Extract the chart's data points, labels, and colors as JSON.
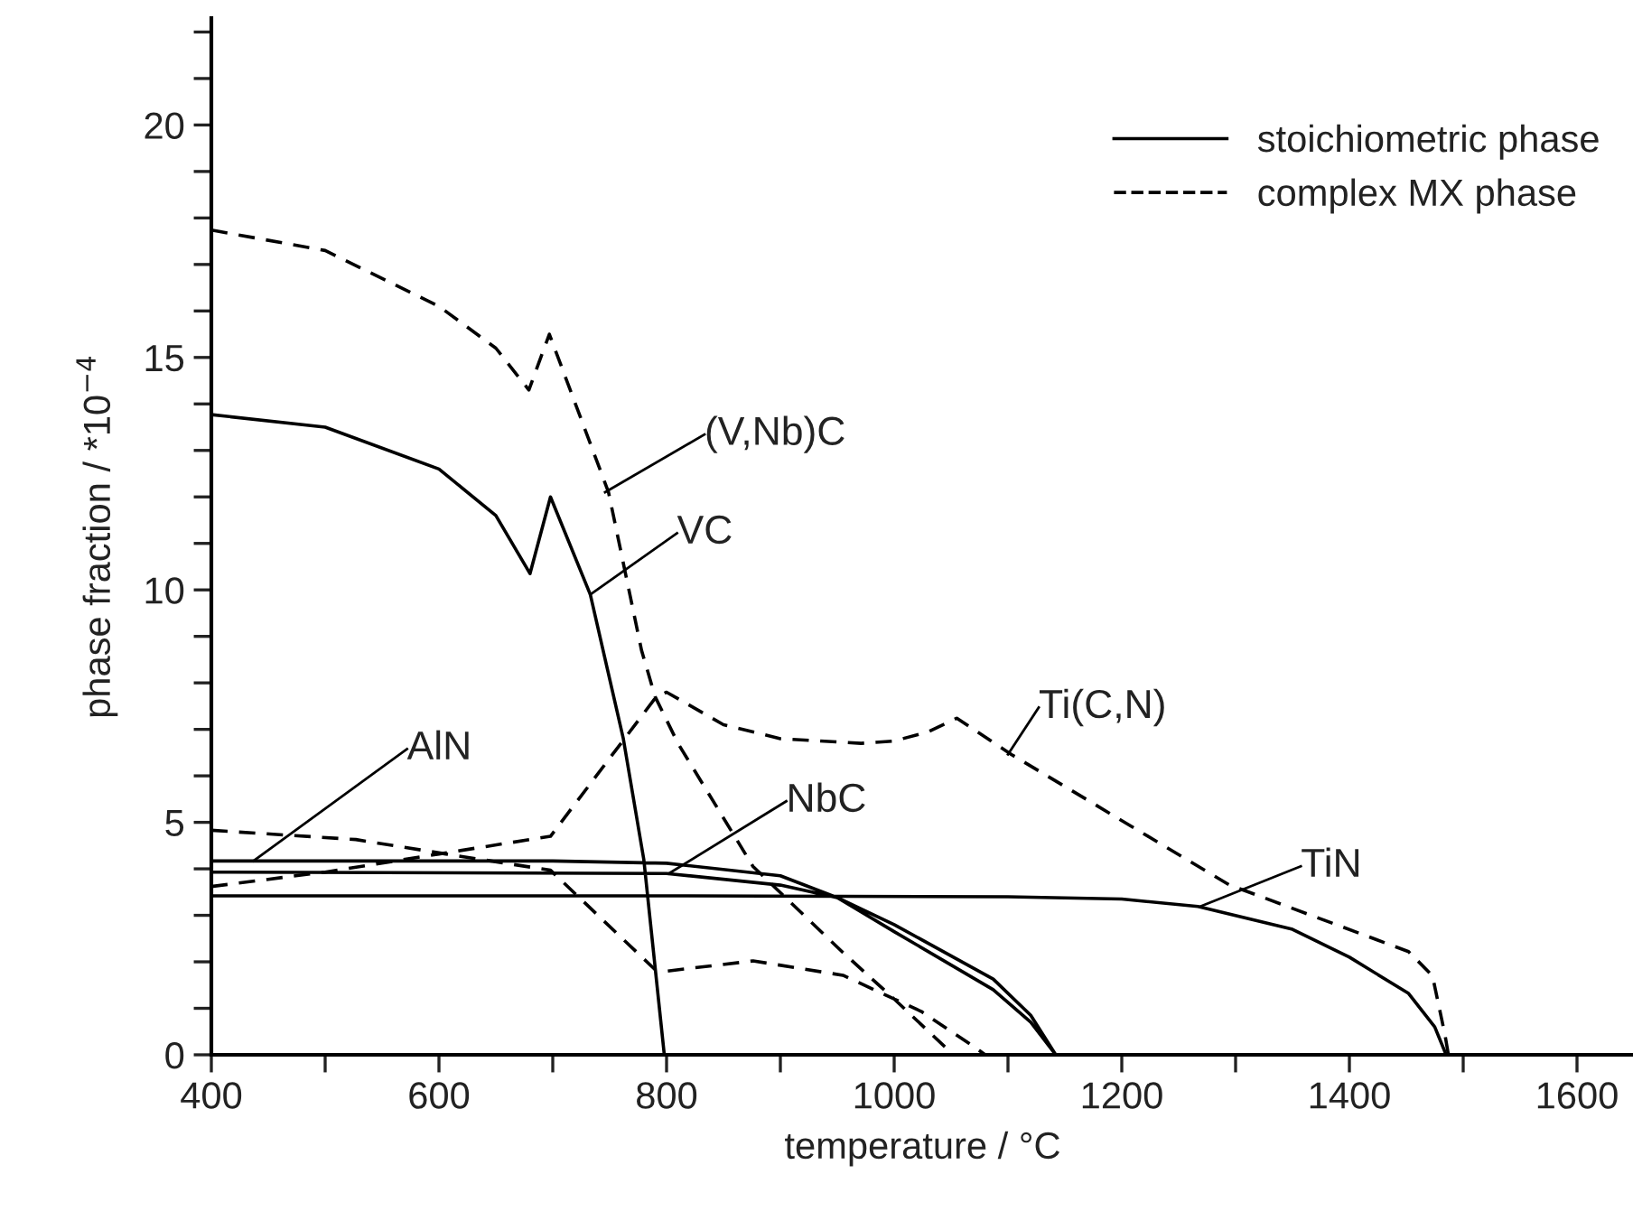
{
  "chart_data": {
    "type": "line",
    "xlabel": "temperature / °C",
    "ylabel": "phase fraction / *10$^{−4}$",
    "xlim": [
      400,
      1650
    ],
    "ylim": [
      0,
      22.3
    ],
    "xticks": [
      400,
      {
        "value": 500,
        "label": null
      },
      600,
      {
        "value": 700,
        "label": null
      },
      800,
      {
        "value": 900,
        "label": null
      },
      1000,
      {
        "value": 1100,
        "label": null
      },
      1200,
      {
        "value": 1300,
        "label": null
      },
      1400,
      {
        "value": 1500,
        "label": null
      },
      1600
    ],
    "yticks": [
      0,
      {
        "value": 1,
        "label": null
      },
      {
        "value": 2,
        "label": null
      },
      {
        "value": 3,
        "label": null
      },
      {
        "value": 4,
        "label": null
      },
      5,
      {
        "value": 6,
        "label": null
      },
      {
        "value": 7,
        "label": null
      },
      {
        "value": 8,
        "label": null
      },
      {
        "value": 9,
        "label": null
      },
      10,
      {
        "value": 11,
        "label": null
      },
      {
        "value": 12,
        "label": null
      },
      {
        "value": 13,
        "label": null
      },
      {
        "value": 14,
        "label": null
      },
      15,
      {
        "value": 16,
        "label": null
      },
      {
        "value": 17,
        "label": null
      },
      {
        "value": 18,
        "label": null
      },
      {
        "value": 19,
        "label": null
      },
      20,
      {
        "value": 21,
        "label": null
      },
      {
        "value": 22,
        "label": null
      }
    ],
    "grid": false,
    "legend": "top right",
    "marker": "none",
    "series": [
      {
        "name": "stoichiometric phase",
        "color": "#000000",
        "line_style": "solid",
        "x": [
          400,
          500,
          600,
          650,
          680,
          698,
          733,
          762,
          780,
          798,
          null,
          400,
          800,
          1100,
          1200,
          1267,
          1350,
          1400,
          1452,
          1475,
          1485,
          null,
          400,
          700,
          800,
          900,
          950,
          1000,
          1087,
          1120,
          1142,
          null,
          400,
          800,
          900,
          950,
          1000,
          1087,
          1120,
          1142
        ],
        "values": [
          13.77,
          13.5,
          12.6,
          11.6,
          10.35,
          12.0,
          9.9,
          6.8,
          4.2,
          0,
          null,
          3.42,
          3.42,
          3.4,
          3.35,
          3.19,
          2.7,
          2.1,
          1.32,
          0.6,
          0,
          null,
          4.17,
          4.17,
          4.12,
          3.85,
          3.38,
          2.65,
          1.4,
          0.7,
          0,
          null,
          3.93,
          3.9,
          3.65,
          3.38,
          2.8,
          1.63,
          0.85,
          0
        ]
      },
      {
        "name": "complex MX phase",
        "color": "#000000",
        "line_style": "dashed",
        "x": [
          400,
          500,
          600,
          650,
          679,
          697,
          749,
          778,
          790,
          810,
          876,
          955,
          1000,
          1052,
          null,
          400,
          500,
          600,
          698,
          790,
          800,
          850,
          900,
          971,
          1000,
          1030,
          1055,
          1103,
          1294,
          1452,
          1473,
          1484,
          1487,
          null,
          400,
          527,
          606,
          698,
          790,
          800,
          876,
          955,
          1024,
          1071,
          1080
        ],
        "values": [
          17.74,
          17.3,
          16.1,
          15.2,
          14.3,
          15.5,
          12.1,
          8.7,
          7.7,
          6.7,
          4.05,
          2.2,
          1.2,
          0,
          null,
          3.62,
          3.93,
          4.32,
          4.7,
          7.67,
          7.8,
          7.1,
          6.8,
          6.7,
          6.75,
          6.95,
          7.24,
          6.46,
          3.66,
          2.22,
          1.7,
          0.43,
          0,
          null,
          4.83,
          4.63,
          4.32,
          3.97,
          1.83,
          1.8,
          2.02,
          1.71,
          0.93,
          0.16,
          0
        ]
      }
    ],
    "annotations": [
      {
        "text": "(V,Nb)C",
        "x": 746,
        "y": 12.1
      },
      {
        "text": "VC",
        "x": 733,
        "y": 9.9
      },
      {
        "text": "AlN",
        "x": 437,
        "y": 4.17
      },
      {
        "text": "NbC",
        "x": 802,
        "y": 3.9
      },
      {
        "text": "Ti(C,N)",
        "x": 1100,
        "y": 6.46
      },
      {
        "text": "TiN",
        "x": 1270,
        "y": 3.2
      }
    ]
  }
}
